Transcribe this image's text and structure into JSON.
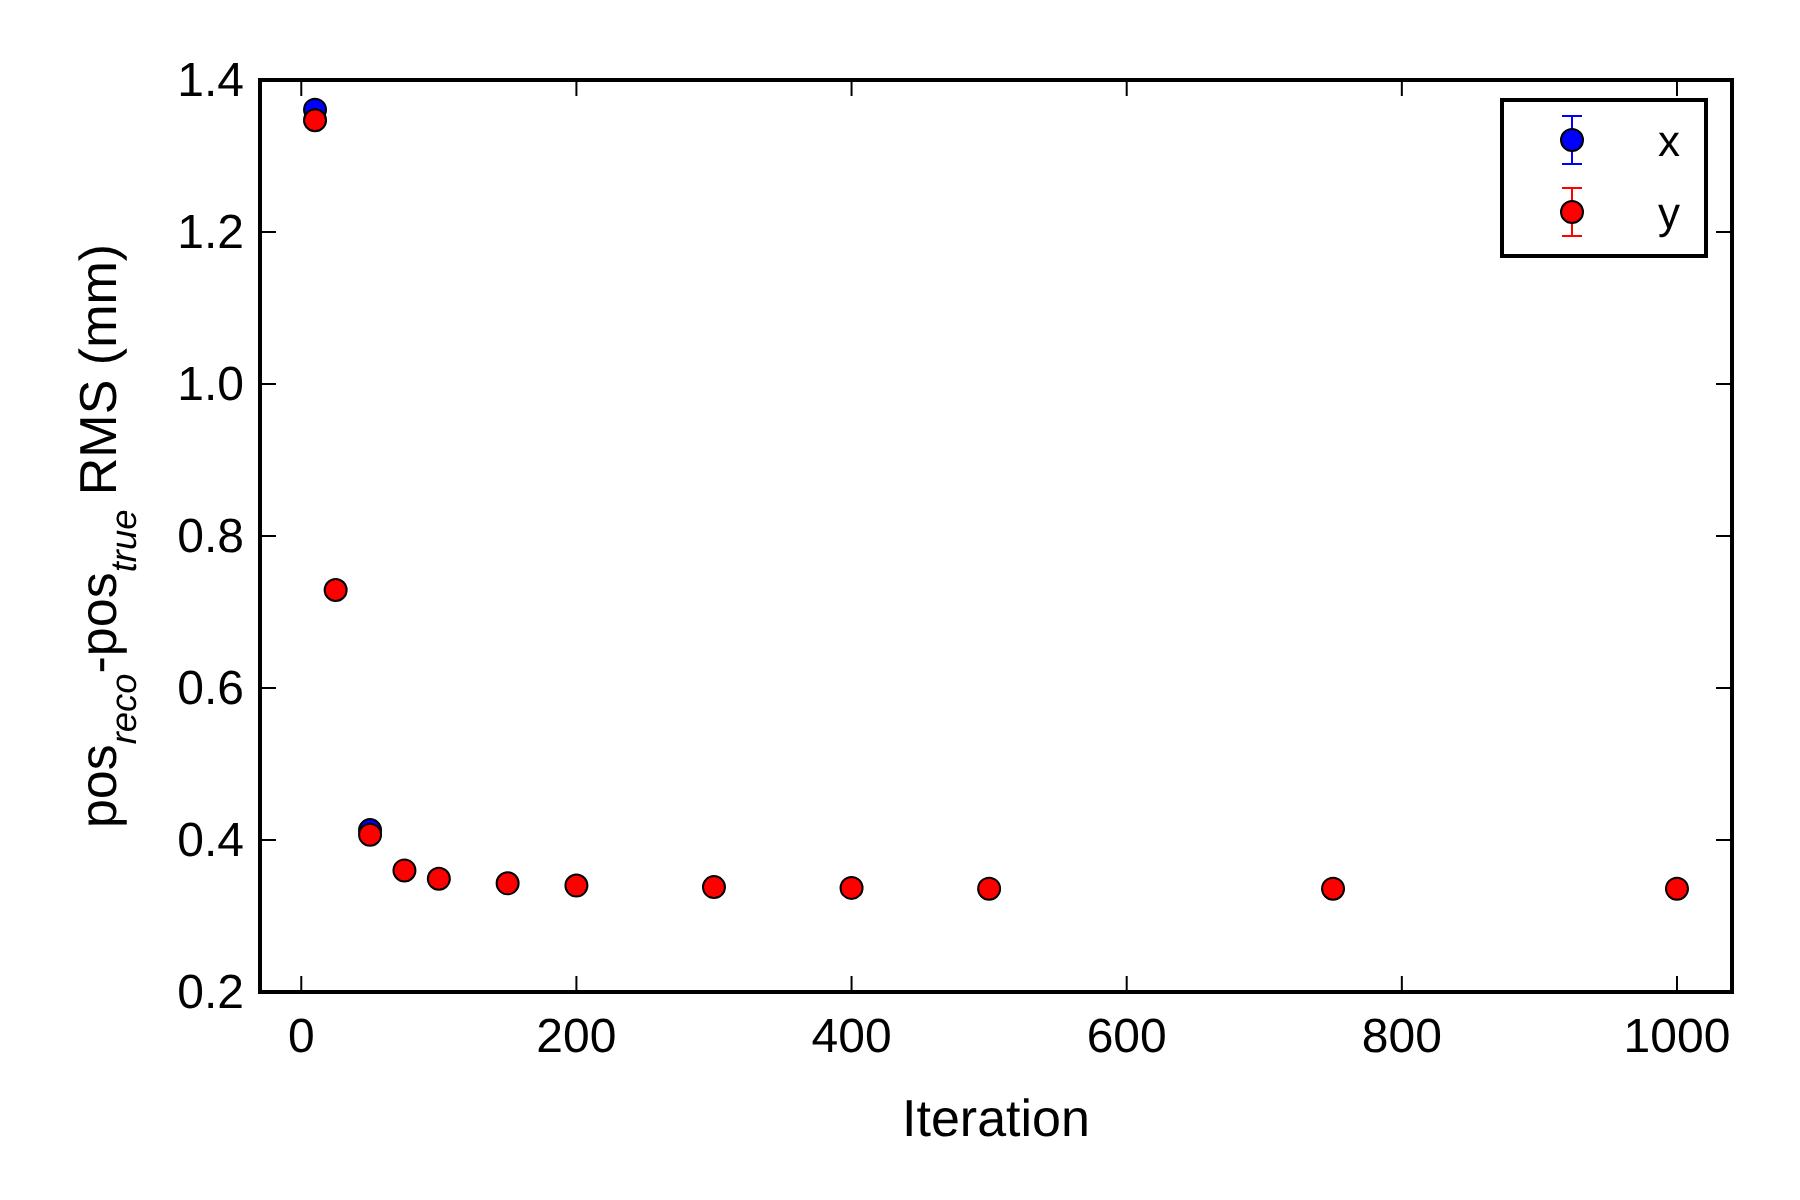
{
  "chart_data": {
    "type": "scatter",
    "xlabel": "Iteration",
    "ylabel": "pos$_{reco}$-pos$_{true}$ RMS (mm)",
    "xlim": [
      -30,
      1040
    ],
    "xticks": [
      0,
      200,
      400,
      600,
      800,
      1000
    ],
    "ylim": [
      0.2,
      1.4
    ],
    "yticks": [
      {
        "value": 0.2,
        "label": "0.2"
      },
      {
        "value": 0.4,
        "label": "0.4"
      },
      {
        "value": 0.6,
        "label": "0.6"
      },
      {
        "value": 0.8,
        "label": "0.8"
      },
      {
        "value": 1.0,
        "label": "1.0"
      },
      {
        "value": 1.2,
        "label": "1.2"
      },
      {
        "value": 1.4,
        "label": "1.4"
      }
    ],
    "grid": false,
    "legend": "top right",
    "marker": "circle",
    "x": [
      10,
      25,
      50,
      75,
      100,
      150,
      200,
      300,
      400,
      500,
      750,
      1000
    ],
    "series": [
      {
        "name": "x",
        "color": "#0000ff",
        "values": [
          1.361,
          null,
          0.413,
          null,
          null,
          null,
          null,
          null,
          null,
          null,
          null,
          null
        ]
      },
      {
        "name": "y",
        "color": "#ff0000",
        "values": [
          1.347,
          0.729,
          0.407,
          0.36,
          0.349,
          0.343,
          0.34,
          0.338,
          0.337,
          0.336,
          0.336,
          0.336
        ]
      }
    ]
  }
}
